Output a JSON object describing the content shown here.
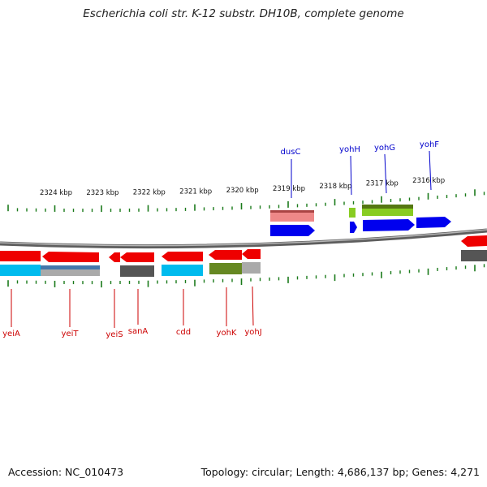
{
  "title": "Escherichia coli str. K-12 substr. DH10B, complete genome",
  "footer": {
    "accession": "Accession: NC_010473",
    "topology": "Topology: circular; Length: 4,686,137 bp; Genes: 4,271"
  },
  "scale_labels": [
    "2324 kbp",
    "2323 kbp",
    "2322 kbp",
    "2321 kbp",
    "2320 kbp",
    "2319 kbp",
    "2318 kbp",
    "2317 kbp",
    "2316 kbp"
  ],
  "colors": {
    "forward_gene": "#0000ee",
    "reverse_gene": "#ee0000",
    "backbone": "#808080",
    "ticks": "#1a7a1a",
    "cyan": "#00bbee",
    "olive": "#668822",
    "dark_gray": "#555555",
    "light_gray": "#aaaaaa",
    "pink": "#ee8888",
    "lime": "#88cc22",
    "steel": "#4477aa"
  },
  "forward_genes": [
    {
      "name": "dusC",
      "label_color": "#0000cc"
    },
    {
      "name": "yohH",
      "label_color": "#0000cc"
    },
    {
      "name": "yohG",
      "label_color": "#0000cc"
    },
    {
      "name": "yohF",
      "label_color": "#0000cc"
    }
  ],
  "reverse_genes": [
    {
      "name": "yeiA",
      "label_color": "#cc0000"
    },
    {
      "name": "yeiT",
      "label_color": "#cc0000"
    },
    {
      "name": "yeiS",
      "label_color": "#cc0000"
    },
    {
      "name": "sanA",
      "label_color": "#cc0000"
    },
    {
      "name": "cdd",
      "label_color": "#cc0000"
    },
    {
      "name": "yohK",
      "label_color": "#cc0000"
    },
    {
      "name": "yohJ",
      "label_color": "#cc0000"
    }
  ]
}
